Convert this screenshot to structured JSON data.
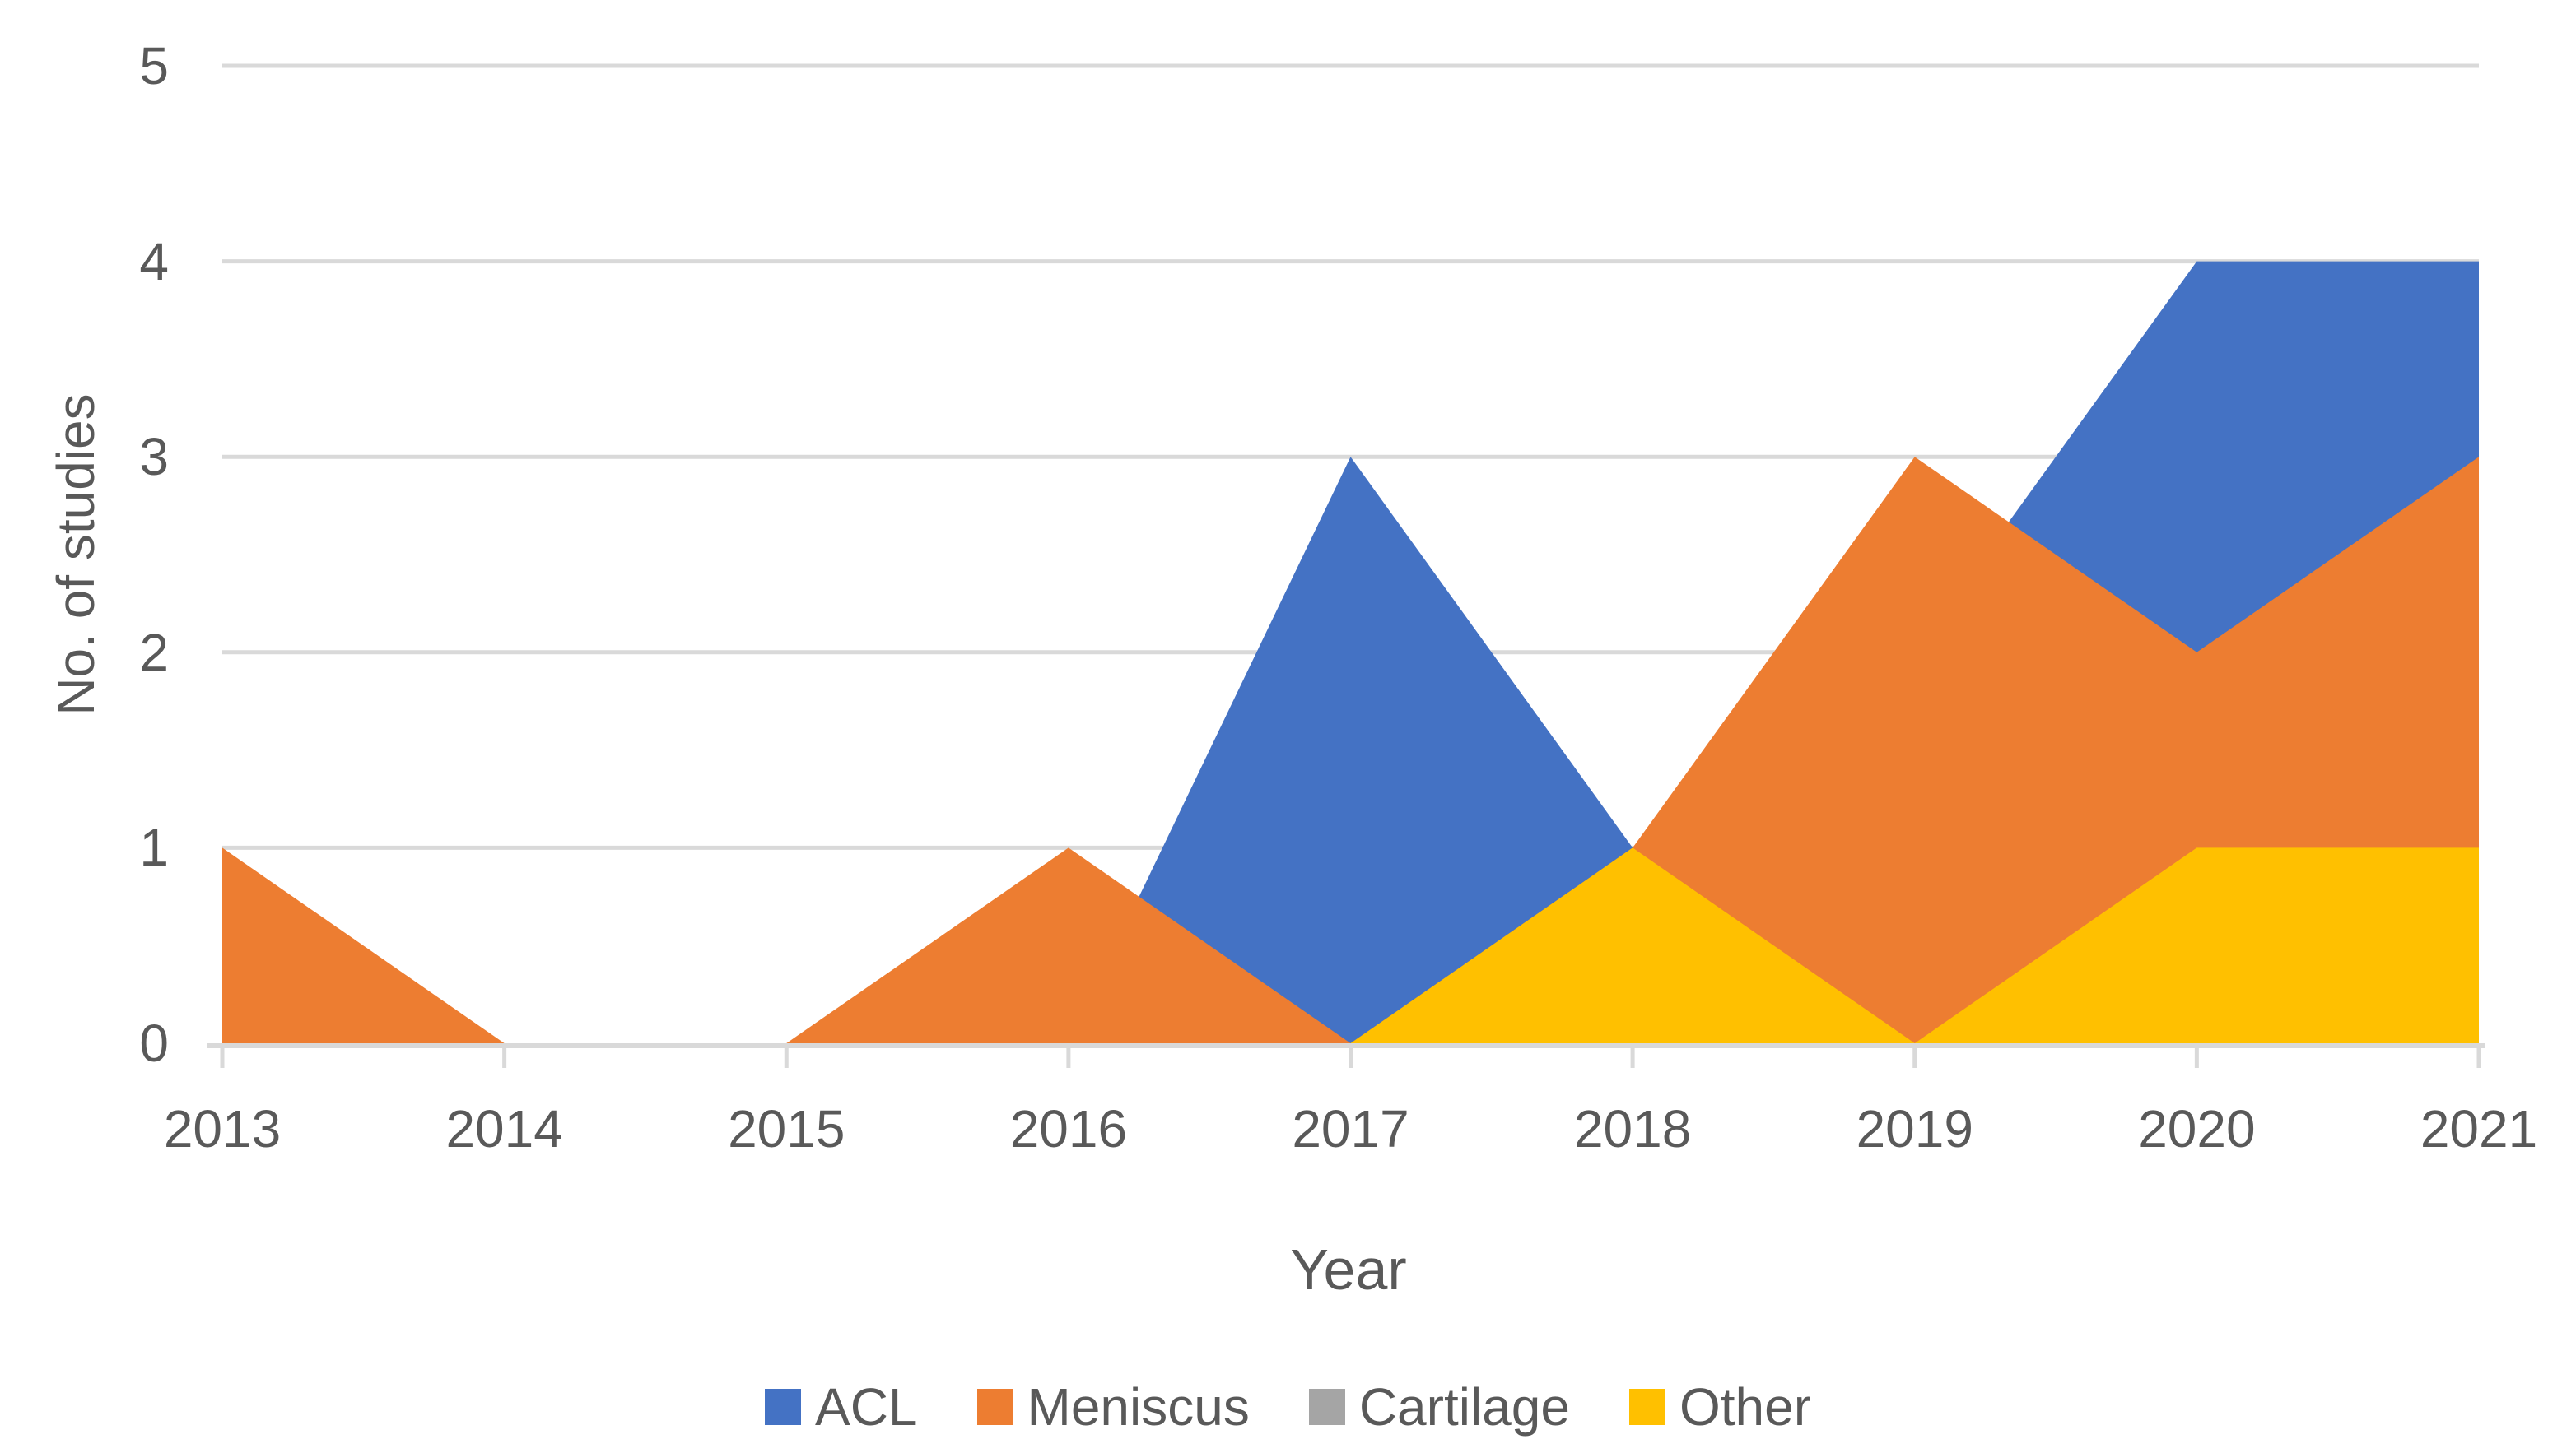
{
  "chart_data": {
    "type": "area",
    "stacked": false,
    "title": "",
    "categories": [
      "2013",
      "2014",
      "2015",
      "2016",
      "2017",
      "2018",
      "2019",
      "2020",
      "2021"
    ],
    "series": [
      {
        "name": "ACL",
        "color": "#4472C4",
        "values": [
          0,
          0,
          0,
          0,
          3,
          1,
          2,
          4,
          4
        ]
      },
      {
        "name": "Meniscus",
        "color": "#ED7D31",
        "values": [
          1,
          0,
          0,
          1,
          0,
          1,
          3,
          2,
          3
        ]
      },
      {
        "name": "Cartilage",
        "color": "#A5A5A5",
        "values": [
          0,
          0,
          0,
          0,
          0,
          0,
          0,
          0,
          0
        ]
      },
      {
        "name": "Other",
        "color": "#FFC000",
        "values": [
          0,
          0,
          0,
          0,
          0,
          1,
          0,
          1,
          1
        ]
      }
    ],
    "xlabel": "Year",
    "ylabel": "No. of studies",
    "ylim": [
      0,
      5
    ],
    "yticks": [
      0,
      1,
      2,
      3,
      4,
      5
    ],
    "grid": "horizontal-only",
    "legend_position": "bottom",
    "style": {
      "gridline_color": "#D9D9D9",
      "axis_line_color": "#D9D9D9",
      "text_color": "#595959",
      "background": "#FFFFFF"
    }
  }
}
